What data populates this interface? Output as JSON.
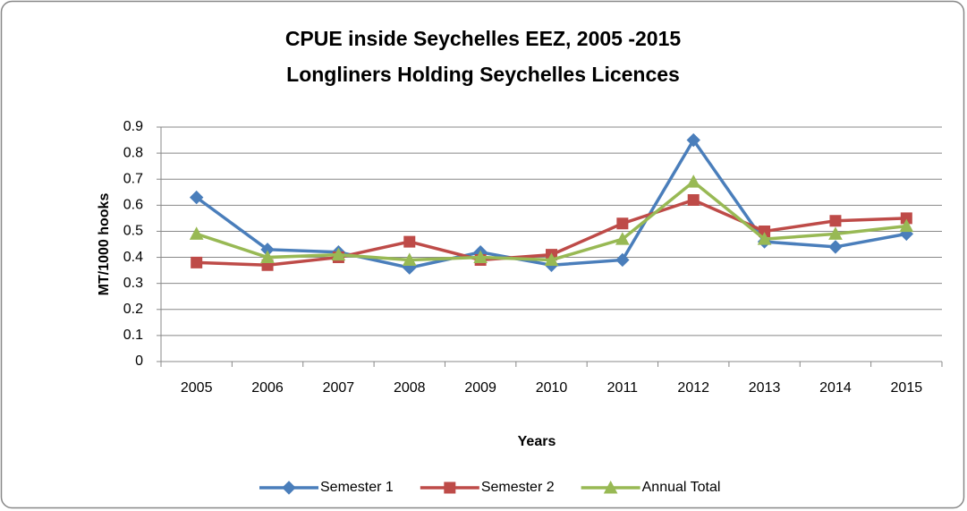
{
  "chart_data": {
    "type": "line",
    "title": [
      "CPUE  inside  Seychelles EEZ, 2005 -2015",
      "Longliners Holding Seychelles Licences"
    ],
    "x_label": "Years",
    "y_label": "MT/1000 hooks",
    "categories": [
      "2005",
      "2006",
      "2007",
      "2008",
      "2009",
      "2010",
      "2011",
      "2012",
      "2013",
      "2014",
      "2015"
    ],
    "series": [
      {
        "name": "Semester 1",
        "color": "#4a7ebb",
        "marker": "diamond",
        "values": [
          0.63,
          0.43,
          0.42,
          0.36,
          0.42,
          0.37,
          0.39,
          0.85,
          0.46,
          0.44,
          0.49
        ]
      },
      {
        "name": "Semester 2",
        "color": "#be4b48",
        "marker": "square",
        "values": [
          0.38,
          0.37,
          0.4,
          0.46,
          0.39,
          0.41,
          0.53,
          0.62,
          0.5,
          0.54,
          0.55
        ]
      },
      {
        "name": "Annual Total",
        "color": "#98b954",
        "marker": "triangle",
        "values": [
          0.49,
          0.4,
          0.41,
          0.39,
          0.4,
          0.39,
          0.47,
          0.69,
          0.47,
          0.49,
          0.52
        ]
      }
    ],
    "ylim": [
      0,
      0.9
    ],
    "yticks": [
      0,
      0.1,
      0.2,
      0.3,
      0.4,
      0.5,
      0.6,
      0.7,
      0.8,
      0.9
    ],
    "grid": true,
    "legend": "bottom"
  }
}
